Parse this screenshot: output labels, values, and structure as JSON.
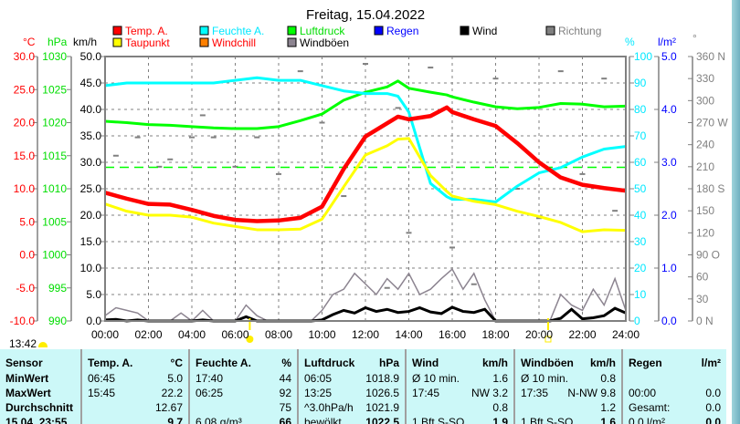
{
  "title": "Freitag, 15.04.2022",
  "colors": {
    "temp": "#ff0000",
    "dew": "#ffff00",
    "hum": "#00ffff",
    "press": "#00ff00",
    "rain": "#0000ff",
    "wind": "#000000",
    "gust": "#8c8490",
    "dir": "#808080",
    "windchill": "#ff8000",
    "grid": "#808080"
  },
  "legend": [
    {
      "label": "Temp. A.",
      "color": "#ff0000",
      "text_color": "#ff0000"
    },
    {
      "label": "Feuchte A.",
      "color": "#00ffff",
      "text_color": "#00e8ff"
    },
    {
      "label": "Luftdruck",
      "color": "#00ff00",
      "text_color": "#00dd00"
    },
    {
      "label": "Regen",
      "color": "#0000ff",
      "text_color": "#0000ff"
    },
    {
      "label": "Wind",
      "color": "#000000",
      "text_color": "#000000"
    },
    {
      "label": "Richtung",
      "color": "#808080",
      "text_color": "#808080"
    },
    {
      "label": "Taupunkt",
      "color": "#ffff00",
      "text_color": "#ff0000"
    },
    {
      "label": "Windchill",
      "color": "#ff8000",
      "text_color": "#ff0000"
    },
    {
      "label": "Windböen",
      "color": "#8c8490",
      "text_color": "#000000"
    }
  ],
  "units": {
    "temp": "°C",
    "press": "hPa",
    "wind": "km/h",
    "hum": "%",
    "rain": "l/m²",
    "dir": "°"
  },
  "current_time": "13:42",
  "chart_data": {
    "type": "line",
    "title": "Freitag, 15.04.2022",
    "x_ticks": [
      "00:00",
      "02:00",
      "04:00",
      "06:00",
      "08:00",
      "10:00",
      "12:00",
      "14:00",
      "16:00",
      "18:00",
      "20:00",
      "22:00",
      "24:00"
    ],
    "xlim": [
      0,
      24
    ],
    "axes": {
      "temp": {
        "range": [
          -10,
          30
        ],
        "ticks": [
          "30.0",
          "25.0",
          "20.0",
          "15.0",
          "10.0",
          "5.0",
          "0.0",
          "-5.0",
          "-10.0"
        ]
      },
      "press": {
        "range": [
          990,
          1030
        ],
        "ticks": [
          "1030",
          "1025",
          "1020",
          "1015",
          "1010",
          "1005",
          "1000",
          "995",
          "990"
        ]
      },
      "wind": {
        "range": [
          0,
          50
        ],
        "ticks": [
          "50.0",
          "45.0",
          "40.0",
          "35.0",
          "30.0",
          "25.0",
          "20.0",
          "15.0",
          "10.0",
          "5.0",
          "0.0"
        ]
      },
      "hum": {
        "range": [
          0,
          100
        ],
        "ticks": [
          "100",
          "90",
          "80",
          "70",
          "60",
          "50",
          "40",
          "30",
          "20",
          "10",
          "0"
        ]
      },
      "rain": {
        "range": [
          0,
          5
        ],
        "ticks": [
          "5.0",
          "4.0",
          "3.0",
          "2.0",
          "1.0",
          "0.0"
        ]
      },
      "dir": {
        "range": [
          0,
          360
        ],
        "ticks": [
          "360 N",
          "330",
          "300",
          "270 W",
          "240",
          "210",
          "180 S",
          "150",
          "120",
          "90  O",
          "60",
          "30",
          "0   N"
        ]
      }
    },
    "hours": [
      0,
      1,
      2,
      3,
      4,
      5,
      6,
      7,
      8,
      9,
      10,
      11,
      12,
      13,
      13.5,
      14,
      15,
      15.75,
      16,
      17,
      18,
      19,
      20,
      21,
      22,
      23,
      24
    ],
    "series": [
      {
        "name": "Temp. A.",
        "axis": "temp",
        "values": [
          9.4,
          8.5,
          7.7,
          7.6,
          6.8,
          5.9,
          5.3,
          5.1,
          5.2,
          5.6,
          7.3,
          13.0,
          17.9,
          19.9,
          20.9,
          20.5,
          21.0,
          22.3,
          21.6,
          20.5,
          19.5,
          16.9,
          14.0,
          11.7,
          10.6,
          10.1,
          9.7
        ]
      },
      {
        "name": "Taupunkt",
        "axis": "temp",
        "values": [
          7.7,
          6.6,
          6.0,
          6.0,
          5.7,
          4.8,
          4.3,
          3.8,
          3.8,
          3.9,
          5.4,
          10.3,
          15.1,
          16.5,
          17.5,
          17.6,
          12.0,
          9.6,
          8.9,
          8.1,
          7.6,
          6.6,
          5.8,
          4.9,
          3.5,
          3.8,
          3.7
        ]
      },
      {
        "name": "Feuchte A.",
        "axis": "hum",
        "values": [
          89,
          90,
          90,
          90,
          90,
          90,
          91,
          92,
          91,
          91,
          89,
          87,
          86,
          86,
          85,
          79,
          52,
          47,
          46,
          46,
          45,
          51,
          56,
          58,
          62,
          65,
          66
        ]
      },
      {
        "name": "Luftdruck",
        "axis": "press",
        "values": [
          1020.2,
          1020,
          1019.7,
          1019.6,
          1019.4,
          1019.2,
          1019.1,
          1019.1,
          1019.4,
          1020.3,
          1021.3,
          1023.4,
          1024.6,
          1025.4,
          1026.3,
          1025.2,
          1024.6,
          1024.2,
          1023.9,
          1023.1,
          1022.4,
          1022.1,
          1022.3,
          1022.9,
          1022.8,
          1022.4,
          1022.5
        ]
      },
      {
        "name": "Regen",
        "axis": "rain",
        "values": [
          0,
          0,
          0,
          0,
          0,
          0,
          0,
          0,
          0,
          0,
          0,
          0,
          0,
          0,
          0,
          0,
          0,
          0,
          0,
          0,
          0,
          0,
          0,
          0,
          0,
          0,
          0
        ]
      }
    ],
    "wind_half_hourly": {
      "Wind": [
        0.2,
        0.3,
        0,
        0.2,
        0,
        0,
        0,
        0,
        0,
        0.2,
        0,
        0,
        0,
        0.8,
        0,
        0,
        0,
        0,
        0,
        0,
        0.2,
        1.2,
        2.0,
        1.5,
        2.5,
        1.8,
        2.2,
        1.6,
        1.8,
        2.5,
        1.7,
        1.4,
        2.6,
        1.8,
        1.6,
        2.2,
        0,
        0,
        0,
        0,
        0,
        0,
        0.5,
        2.2,
        0.4,
        0.6,
        1.0,
        2.4,
        1.5
      ],
      "Windböen": [
        1,
        2.5,
        2,
        1.5,
        0,
        0,
        0,
        1.5,
        0,
        2,
        0,
        0,
        0,
        3,
        1,
        0,
        0,
        0,
        0,
        0,
        2,
        5,
        6,
        9,
        7,
        5,
        8,
        6,
        9,
        5,
        6,
        8,
        9.8,
        6,
        9,
        4,
        0,
        0,
        0,
        0,
        0,
        0,
        5,
        3,
        2,
        6,
        3,
        8,
        2
      ]
    },
    "direction_points": [
      [
        0.5,
        225
      ],
      [
        1.5,
        250
      ],
      [
        2.5,
        210
      ],
      [
        3,
        220
      ],
      [
        4,
        250
      ],
      [
        4.5,
        280
      ],
      [
        5,
        250
      ],
      [
        6,
        210
      ],
      [
        7,
        250
      ],
      [
        8,
        200
      ],
      [
        9,
        340
      ],
      [
        10,
        270
      ],
      [
        11,
        170
      ],
      [
        12,
        350
      ],
      [
        13,
        45
      ],
      [
        13.5,
        290
      ],
      [
        14,
        120
      ],
      [
        15,
        345
      ],
      [
        16,
        100
      ],
      [
        17,
        50
      ],
      [
        18,
        330
      ],
      [
        19,
        180
      ],
      [
        20,
        140
      ],
      [
        21,
        340
      ],
      [
        22,
        200
      ],
      [
        23,
        330
      ],
      [
        23.5,
        150
      ]
    ],
    "reference_lines": [
      {
        "axis": "press",
        "value": 1013.25,
        "style": "dashed"
      }
    ],
    "sun_markers": [
      6.67,
      20.42
    ]
  },
  "table": {
    "columns": [
      {
        "head": "Sensor",
        "unit": "",
        "rows": [
          {
            "l": "MinWert",
            "r": ""
          },
          {
            "l": "MaxWert",
            "r": ""
          },
          {
            "l": "Durchschnitt",
            "r": ""
          },
          {
            "l": "15.04. 23:55",
            "r": ""
          }
        ]
      },
      {
        "head": "Temp. A.",
        "unit": "°C",
        "rows": [
          {
            "l": "06:45",
            "r": "5.0"
          },
          {
            "l": "15:45",
            "r": "22.2"
          },
          {
            "l": "",
            "r": "12.67"
          },
          {
            "l": "",
            "r": "9.7"
          }
        ]
      },
      {
        "head": "Feuchte A.",
        "unit": "%",
        "rows": [
          {
            "l": "17:40",
            "r": "44"
          },
          {
            "l": "06:25",
            "r": "92"
          },
          {
            "l": "",
            "r": "75"
          },
          {
            "l": "6.08 g/m³",
            "r": "66"
          }
        ]
      },
      {
        "head": "Luftdruck",
        "unit": "hPa",
        "rows": [
          {
            "l": "06:05",
            "r": "1018.9"
          },
          {
            "l": "13:25",
            "r": "1026.5"
          },
          {
            "l": "^3.0hPa/h",
            "r": "1021.9"
          },
          {
            "l": "bewölkt",
            "r": "1022.5"
          }
        ]
      },
      {
        "head": "Wind",
        "unit": "km/h",
        "rows": [
          {
            "l": "Ø 10 min.",
            "r": "1.6"
          },
          {
            "l": "17:45",
            "r": "NW 3.2"
          },
          {
            "l": "",
            "r": "0.8"
          },
          {
            "l": "1 Bft S-SO",
            "r": "1.9"
          }
        ]
      },
      {
        "head": "Windböen",
        "unit": "km/h",
        "rows": [
          {
            "l": "Ø 10 min.",
            "r": "0.8"
          },
          {
            "l": "17:35",
            "r": "N-NW 9.8"
          },
          {
            "l": "",
            "r": "1.2"
          },
          {
            "l": "1 Bft S-SO",
            "r": "1.6"
          }
        ]
      },
      {
        "head": "Regen",
        "unit": "l/m²",
        "rows": [
          {
            "l": "",
            "r": ""
          },
          {
            "l": "00:00",
            "r": "0.0"
          },
          {
            "l": "Gesamt:",
            "r": "0.0"
          },
          {
            "l": "0.0 l/m²",
            "r": "0.0"
          }
        ]
      }
    ]
  }
}
